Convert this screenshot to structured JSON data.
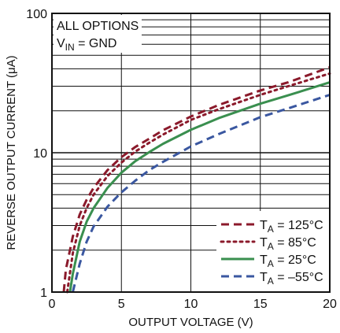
{
  "chart_data": {
    "type": "line",
    "xlabel": "OUTPUT VOLTAGE (V)",
    "ylabel": "REVERSE OUTPUT CURRENT (μA)",
    "xlim": [
      0,
      20
    ],
    "ylim": [
      1,
      100
    ],
    "yscale": "log",
    "grid": true,
    "legend_position": "bottom-right",
    "x_ticks": [
      "0",
      "5",
      "10",
      "15",
      "20"
    ],
    "y_ticks": [
      "1",
      "10",
      "100"
    ],
    "annotations": [
      "ALL OPTIONS",
      "V",
      "IN",
      " = GND"
    ],
    "series": [
      {
        "name_main": "T",
        "name_sub": "A",
        "name_rest": " = 125°C",
        "color": "#8b1a2b",
        "style": "dashed",
        "x": [
          0.85,
          1,
          1.5,
          2,
          2.5,
          3,
          4,
          5,
          6,
          7,
          8,
          10,
          12,
          15,
          17,
          20
        ],
        "y": [
          1,
          1.45,
          2.5,
          3.6,
          4.6,
          5.6,
          7.5,
          9.3,
          11,
          12.6,
          14.5,
          18.2,
          22,
          28,
          32,
          41
        ]
      },
      {
        "name_main": "T",
        "name_sub": "A",
        "name_rest": " = 85°C",
        "color": "#8b1a2b",
        "style": "dotted",
        "x": [
          1.1,
          1.5,
          2,
          2.5,
          3,
          4,
          5,
          6,
          7,
          8,
          10,
          12,
          15,
          17,
          20
        ],
        "y": [
          1,
          1.9,
          3.0,
          4.0,
          5.0,
          6.8,
          8.5,
          10.2,
          11.8,
          13.5,
          17.2,
          20.5,
          26,
          30,
          37
        ]
      },
      {
        "name_main": "T",
        "name_sub": "A",
        "name_rest": " = 25°C",
        "color": "#3a8f4f",
        "style": "solid",
        "x": [
          1.3,
          1.5,
          2,
          2.5,
          3,
          4,
          5,
          6,
          7,
          8,
          10,
          12,
          15,
          17,
          20
        ],
        "y": [
          1,
          1.35,
          2.3,
          3.2,
          4.0,
          5.6,
          7.2,
          8.7,
          10.1,
          11.6,
          14.6,
          17.7,
          22.5,
          25.8,
          32
        ]
      },
      {
        "name_main": "T",
        "name_sub": "A",
        "name_rest": " = –55°C",
        "color": "#3a57a0",
        "style": "dashed",
        "x": [
          1.5,
          2,
          2.5,
          3,
          4,
          5,
          6,
          7,
          8,
          10,
          12,
          15,
          17,
          20
        ],
        "y": [
          1,
          1.6,
          2.3,
          2.95,
          4.1,
          5.2,
          6.3,
          7.5,
          8.6,
          11.1,
          13.6,
          18,
          20.8,
          26
        ]
      }
    ]
  }
}
